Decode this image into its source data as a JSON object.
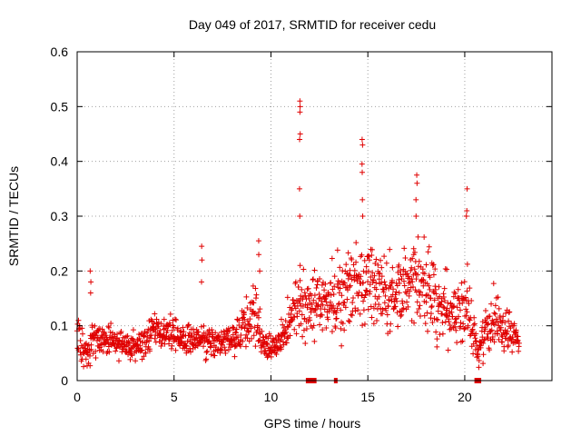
{
  "chart_data": {
    "type": "scatter",
    "title": "Day 049 of 2017, SRMTID for receiver cedu",
    "xlabel": "GPS time / hours",
    "ylabel": "SRMTID / TECUs",
    "xlim": [
      0,
      24.5
    ],
    "ylim": [
      0,
      0.6
    ],
    "xticks": [
      0,
      5,
      10,
      15,
      20
    ],
    "yticks": [
      0,
      0.1,
      0.2,
      0.3,
      0.4,
      0.5,
      0.6
    ],
    "xtick_labels": [
      "0",
      "5",
      "10",
      "15",
      "20"
    ],
    "ytick_labels": [
      "0",
      "0.1",
      "0.2",
      "0.3",
      "0.4",
      "0.5",
      "0.6"
    ],
    "grid": true,
    "color": "#e00000",
    "envelope": [
      {
        "x": 0.0,
        "y": 0.07,
        "s": 0.03
      },
      {
        "x": 0.5,
        "y": 0.045,
        "s": 0.02
      },
      {
        "x": 1.0,
        "y": 0.08,
        "s": 0.025
      },
      {
        "x": 2.0,
        "y": 0.07,
        "s": 0.02
      },
      {
        "x": 3.0,
        "y": 0.06,
        "s": 0.015
      },
      {
        "x": 3.5,
        "y": 0.07,
        "s": 0.02
      },
      {
        "x": 4.0,
        "y": 0.095,
        "s": 0.02
      },
      {
        "x": 5.0,
        "y": 0.08,
        "s": 0.02
      },
      {
        "x": 6.0,
        "y": 0.07,
        "s": 0.02
      },
      {
        "x": 7.0,
        "y": 0.07,
        "s": 0.02
      },
      {
        "x": 8.0,
        "y": 0.07,
        "s": 0.02
      },
      {
        "x": 8.7,
        "y": 0.1,
        "s": 0.03
      },
      {
        "x": 9.2,
        "y": 0.13,
        "s": 0.04
      },
      {
        "x": 9.5,
        "y": 0.07,
        "s": 0.02
      },
      {
        "x": 10.3,
        "y": 0.06,
        "s": 0.015
      },
      {
        "x": 11.0,
        "y": 0.11,
        "s": 0.03
      },
      {
        "x": 11.5,
        "y": 0.15,
        "s": 0.04
      },
      {
        "x": 12.0,
        "y": 0.12,
        "s": 0.04
      },
      {
        "x": 12.5,
        "y": 0.15,
        "s": 0.04
      },
      {
        "x": 13.5,
        "y": 0.15,
        "s": 0.05
      },
      {
        "x": 14.5,
        "y": 0.18,
        "s": 0.05
      },
      {
        "x": 15.5,
        "y": 0.17,
        "s": 0.05
      },
      {
        "x": 16.5,
        "y": 0.16,
        "s": 0.05
      },
      {
        "x": 17.5,
        "y": 0.19,
        "s": 0.05
      },
      {
        "x": 18.5,
        "y": 0.15,
        "s": 0.05
      },
      {
        "x": 19.5,
        "y": 0.12,
        "s": 0.04
      },
      {
        "x": 20.2,
        "y": 0.13,
        "s": 0.05
      },
      {
        "x": 20.7,
        "y": 0.05,
        "s": 0.015
      },
      {
        "x": 21.2,
        "y": 0.11,
        "s": 0.04
      },
      {
        "x": 22.0,
        "y": 0.1,
        "s": 0.03
      },
      {
        "x": 22.8,
        "y": 0.07,
        "s": 0.02
      }
    ],
    "x_start": 0.0,
    "x_end": 22.8,
    "n_points": 1400,
    "spikes": [
      {
        "x": 0.7,
        "values": [
          0.16,
          0.18,
          0.2
        ]
      },
      {
        "x": 6.4,
        "values": [
          0.18,
          0.22,
          0.245
        ]
      },
      {
        "x": 9.4,
        "values": [
          0.2,
          0.23,
          0.255
        ]
      },
      {
        "x": 11.5,
        "values": [
          0.21,
          0.3,
          0.35,
          0.44,
          0.45,
          0.49,
          0.5,
          0.51
        ]
      },
      {
        "x": 14.7,
        "values": [
          0.3,
          0.33,
          0.38,
          0.395,
          0.43,
          0.44
        ]
      },
      {
        "x": 17.5,
        "values": [
          0.3,
          0.33,
          0.36,
          0.375
        ]
      },
      {
        "x": 20.1,
        "values": [
          0.3,
          0.31,
          0.35
        ]
      }
    ],
    "gap_markers": [
      {
        "x0": 11.8,
        "x1": 12.35
      },
      {
        "x0": 13.25,
        "x1": 13.4
      },
      {
        "x0": 20.5,
        "x1": 20.85
      }
    ]
  }
}
